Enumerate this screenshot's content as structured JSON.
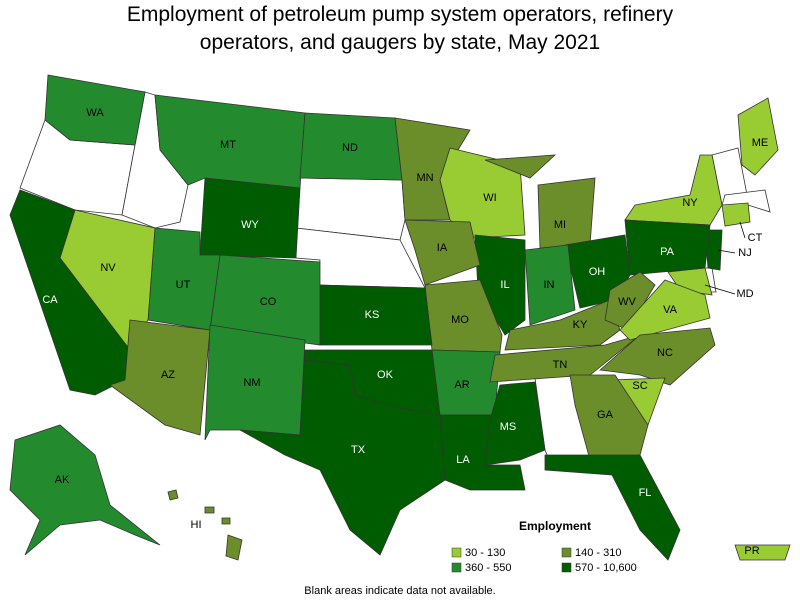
{
  "title": "Employment of petroleum pump system operators, refinery operators, and gaugers by state, May 2021",
  "legend": {
    "title": "Employment",
    "items": [
      {
        "label": "30 - 130",
        "color": "#99cc33"
      },
      {
        "label": "140 - 310",
        "color": "#6b8e2a"
      },
      {
        "label": "360 - 550",
        "color": "#238b2e"
      },
      {
        "label": "570 - 10,600",
        "color": "#005c00"
      }
    ]
  },
  "states": [
    {
      "abbr": "WA",
      "range": "360 - 550"
    },
    {
      "abbr": "MT",
      "range": "360 - 550"
    },
    {
      "abbr": "ND",
      "range": "360 - 550"
    },
    {
      "abbr": "MN",
      "range": "140 - 310"
    },
    {
      "abbr": "WI",
      "range": "30 - 130"
    },
    {
      "abbr": "MI",
      "range": "140 - 310"
    },
    {
      "abbr": "ME",
      "range": "30 - 130"
    },
    {
      "abbr": "NY",
      "range": "30 - 130"
    },
    {
      "abbr": "CT",
      "range": "30 - 130"
    },
    {
      "abbr": "NJ",
      "range": "570 - 10,600"
    },
    {
      "abbr": "MD",
      "range": "30 - 130"
    },
    {
      "abbr": "PA",
      "range": "570 - 10,600"
    },
    {
      "abbr": "OH",
      "range": "570 - 10,600"
    },
    {
      "abbr": "IN",
      "range": "360 - 550"
    },
    {
      "abbr": "IL",
      "range": "570 - 10,600"
    },
    {
      "abbr": "IA",
      "range": "140 - 310"
    },
    {
      "abbr": "MO",
      "range": "140 - 310"
    },
    {
      "abbr": "KS",
      "range": "570 - 10,600"
    },
    {
      "abbr": "WY",
      "range": "570 - 10,600"
    },
    {
      "abbr": "CO",
      "range": "360 - 550"
    },
    {
      "abbr": "UT",
      "range": "360 - 550"
    },
    {
      "abbr": "NV",
      "range": "30 - 130"
    },
    {
      "abbr": "CA",
      "range": "570 - 10,600"
    },
    {
      "abbr": "AZ",
      "range": "140 - 310"
    },
    {
      "abbr": "NM",
      "range": "360 - 550"
    },
    {
      "abbr": "TX",
      "range": "570 - 10,600"
    },
    {
      "abbr": "OK",
      "range": "570 - 10,600"
    },
    {
      "abbr": "AR",
      "range": "360 - 550"
    },
    {
      "abbr": "LA",
      "range": "570 - 10,600"
    },
    {
      "abbr": "MS",
      "range": "570 - 10,600"
    },
    {
      "abbr": "TN",
      "range": "140 - 310"
    },
    {
      "abbr": "KY",
      "range": "140 - 310"
    },
    {
      "abbr": "WV",
      "range": "140 - 310"
    },
    {
      "abbr": "VA",
      "range": "30 - 130"
    },
    {
      "abbr": "NC",
      "range": "140 - 310"
    },
    {
      "abbr": "SC",
      "range": "30 - 130"
    },
    {
      "abbr": "GA",
      "range": "140 - 310"
    },
    {
      "abbr": "FL",
      "range": "570 - 10,600"
    },
    {
      "abbr": "AK",
      "range": "360 - 550"
    },
    {
      "abbr": "HI",
      "range": "140 - 310"
    },
    {
      "abbr": "PR",
      "range": "30 - 130"
    }
  ],
  "note": "Blank areas indicate data not available."
}
